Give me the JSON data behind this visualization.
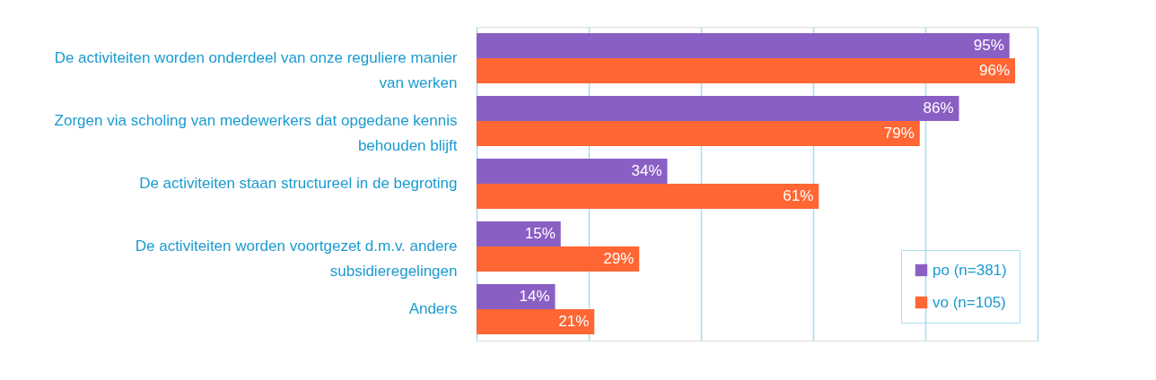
{
  "chart_data": {
    "type": "bar",
    "orientation": "horizontal",
    "categories": [
      "De activiteiten worden onderdeel van onze reguliere manier van werken",
      "Zorgen via scholing van medewerkers dat opgedane kennis behouden blijft",
      "De activiteiten staan structureel in de begroting",
      "De activiteiten worden voortgezet d.m.v. andere subsidieregelingen",
      "Anders"
    ],
    "series": [
      {
        "name": "po (n=381)",
        "color": "#8a5fc4",
        "values": [
          95,
          86,
          34,
          15,
          14
        ],
        "value_labels": [
          "95%",
          "86%",
          "34%",
          "15%",
          "14%"
        ]
      },
      {
        "name": "vo (n=105)",
        "color": "#ff6633",
        "values": [
          96,
          79,
          61,
          29,
          21
        ],
        "value_labels": [
          "96%",
          "79%",
          "61%",
          "29%",
          "21%"
        ]
      }
    ],
    "xlim": [
      0,
      100
    ],
    "xticks": [
      {
        "value": 0,
        "label": null
      },
      {
        "value": 20,
        "label": null
      },
      {
        "value": 40,
        "label": null
      },
      {
        "value": 60,
        "label": null
      },
      {
        "value": 80,
        "label": null
      },
      {
        "value": 100,
        "label": null
      }
    ],
    "grid": "x",
    "legend": "bottom right",
    "tick_labels": "y"
  }
}
